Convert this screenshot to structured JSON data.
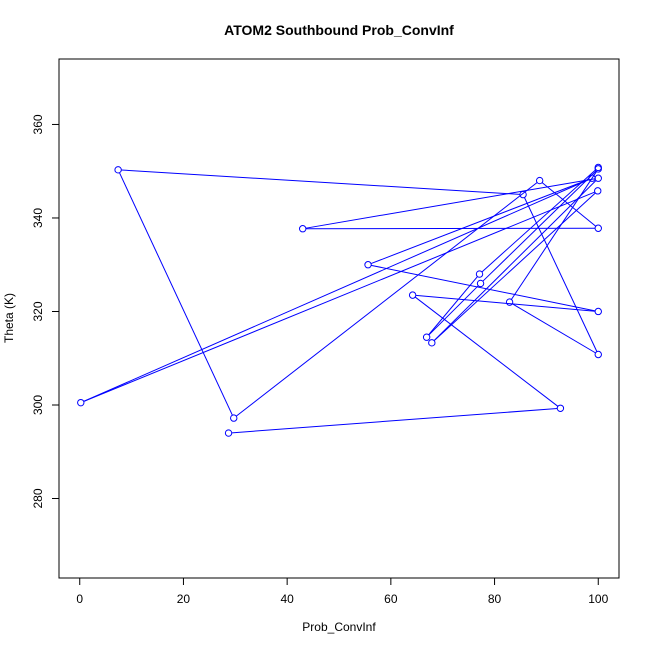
{
  "chart_data": {
    "type": "line",
    "title": "ATOM2 Southbound Prob_ConvInf",
    "xlabel": "Prob_ConvInf",
    "ylabel": "Theta (K)",
    "xlim": [
      -4,
      104
    ],
    "ylim": [
      263,
      374
    ],
    "xticks": [
      0,
      20,
      40,
      60,
      80,
      100
    ],
    "yticks": [
      280,
      300,
      320,
      340,
      360
    ],
    "grid": false,
    "legend": "none",
    "color": "#0000ff",
    "series": [
      {
        "x": [
          28.7,
          92.7,
          64.2,
          100,
          55.6,
          98.8,
          0.2,
          99.9,
          67.9,
          100,
          43.0,
          100,
          88.7,
          29.7,
          7.4,
          85.5,
          100,
          82.9,
          100,
          77.3,
          66.9,
          77.1,
          100
        ],
        "y": [
          294.0,
          299.3,
          323.5,
          320.0,
          330.0,
          348.5,
          300.5,
          345.8,
          313.3,
          348.5,
          337.7,
          337.8,
          348.0,
          297.2,
          350.3,
          345.0,
          310.8,
          322.0,
          350.5,
          326.0,
          314.5,
          328.0,
          350.8
        ]
      }
    ]
  }
}
